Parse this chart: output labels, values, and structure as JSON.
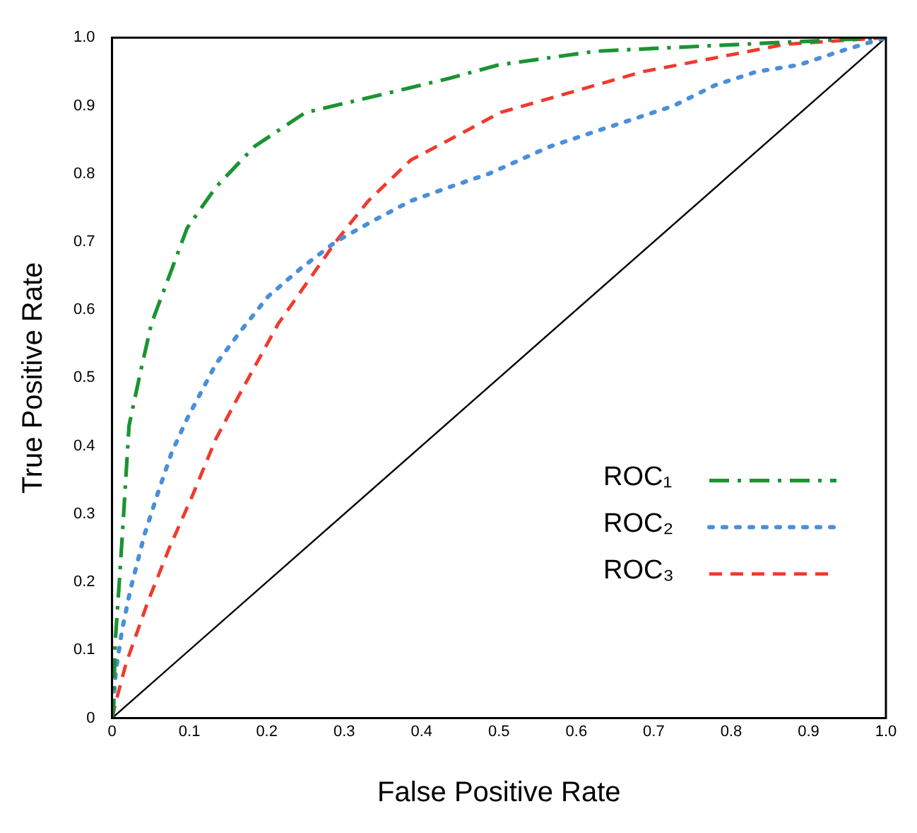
{
  "chart_data": {
    "type": "line",
    "xlabel": "False Positive Rate",
    "ylabel": "True Positive Rate",
    "xlim": [
      0,
      1
    ],
    "ylim": [
      0,
      1
    ],
    "xticks": [
      0,
      0.1,
      0.2,
      0.3,
      0.4,
      0.5,
      0.6,
      0.7,
      0.8,
      0.9,
      {
        "value": 1,
        "label": "1.0"
      }
    ],
    "yticks": [
      0,
      0.1,
      0.2,
      0.3,
      0.4,
      0.5,
      0.6,
      0.7,
      0.8,
      0.9,
      {
        "value": 1,
        "label": "1.0"
      }
    ],
    "grid": false,
    "legend": "bottom right",
    "marker": "none",
    "series": [
      {
        "name": "ROC₁",
        "color": "#1a9432",
        "line_style": "dashdot",
        "x": [
          0,
          0.002,
          0.004,
          0.01,
          0.015,
          0.022,
          0.037,
          0.051,
          0.074,
          0.097,
          0.134,
          0.184,
          0.25,
          0.325,
          0.435,
          0.5,
          0.625,
          0.81,
          1
        ],
        "values": [
          0,
          0.01,
          0.11,
          0.21,
          0.3,
          0.43,
          0.51,
          0.58,
          0.65,
          0.72,
          0.78,
          0.84,
          0.89,
          0.91,
          0.94,
          0.96,
          0.98,
          0.99,
          1
        ]
      },
      {
        "name": "ROC₂",
        "color": "#4a8fd9",
        "line_style": "dotted",
        "x": [
          0,
          0.005,
          0.013,
          0.024,
          0.042,
          0.059,
          0.077,
          0.097,
          0.134,
          0.167,
          0.202,
          0.243,
          0.289,
          0.336,
          0.386,
          0.435,
          0.487,
          0.566,
          0.619,
          0.673,
          0.726,
          0.779,
          0.833,
          0.888,
          0.941,
          1
        ],
        "values": [
          0,
          0.07,
          0.13,
          0.19,
          0.27,
          0.33,
          0.39,
          0.44,
          0.52,
          0.57,
          0.62,
          0.66,
          0.7,
          0.73,
          0.76,
          0.78,
          0.8,
          0.84,
          0.86,
          0.88,
          0.9,
          0.93,
          0.95,
          0.96,
          0.98,
          1
        ]
      },
      {
        "name": "ROC₃",
        "color": "#f03a2e",
        "line_style": "dashed",
        "x": [
          0,
          0.004,
          0.018,
          0.046,
          0.074,
          0.105,
          0.134,
          0.162,
          0.215,
          0.252,
          0.289,
          0.331,
          0.386,
          0.436,
          0.502,
          0.594,
          0.686,
          0.778,
          0.869,
          1
        ],
        "values": [
          0,
          0.02,
          0.08,
          0.17,
          0.25,
          0.33,
          0.41,
          0.47,
          0.58,
          0.64,
          0.7,
          0.76,
          0.82,
          0.85,
          0.89,
          0.92,
          0.95,
          0.97,
          0.99,
          1
        ]
      },
      {
        "color": "#000000",
        "line_style": "solid",
        "x": [
          0,
          1
        ],
        "values": [
          0,
          1
        ]
      }
    ]
  }
}
